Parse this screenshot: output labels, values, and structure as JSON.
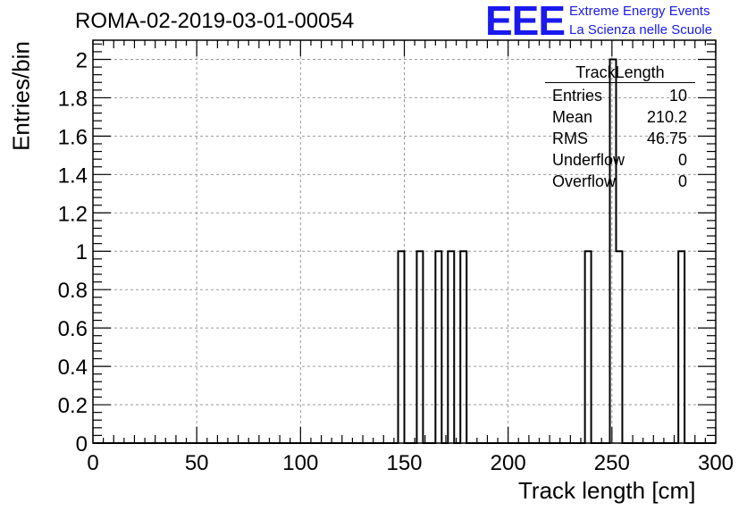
{
  "header": {
    "title": "ROMA-02-2019-03-01-00054",
    "logo_text": "EEE",
    "logo_line1": "Extreme Energy Events",
    "logo_line2": "La Scienza nelle Scuole"
  },
  "stats_box": {
    "title": "TrackLength",
    "rows": [
      {
        "label": "Entries",
        "value": "10"
      },
      {
        "label": "Mean",
        "value": "210.2"
      },
      {
        "label": "RMS",
        "value": "46.75"
      },
      {
        "label": "Underflow",
        "value": "0"
      },
      {
        "label": "Overflow",
        "value": "0"
      }
    ]
  },
  "chart_data": {
    "type": "bar",
    "title": "ROMA-02-2019-03-01-00054",
    "xlabel": "Track length [cm]",
    "ylabel": "Entries/bin",
    "xlim": [
      0,
      300
    ],
    "ylim": [
      0,
      2.1
    ],
    "bin_width": 3,
    "grid": true,
    "legend": "top-right",
    "x_ticks": [
      0,
      50,
      100,
      150,
      200,
      250,
      300
    ],
    "y_ticks": [
      0,
      0.2,
      0.4,
      0.6,
      0.8,
      1,
      1.2,
      1.4,
      1.6,
      1.8,
      2
    ],
    "bins": [
      {
        "x": 147,
        "value": 1
      },
      {
        "x": 156,
        "value": 1
      },
      {
        "x": 165,
        "value": 1
      },
      {
        "x": 171,
        "value": 1
      },
      {
        "x": 177,
        "value": 1
      },
      {
        "x": 237,
        "value": 1
      },
      {
        "x": 249,
        "value": 2
      },
      {
        "x": 252,
        "value": 1
      },
      {
        "x": 282,
        "value": 1
      }
    ],
    "color": "#000000"
  }
}
